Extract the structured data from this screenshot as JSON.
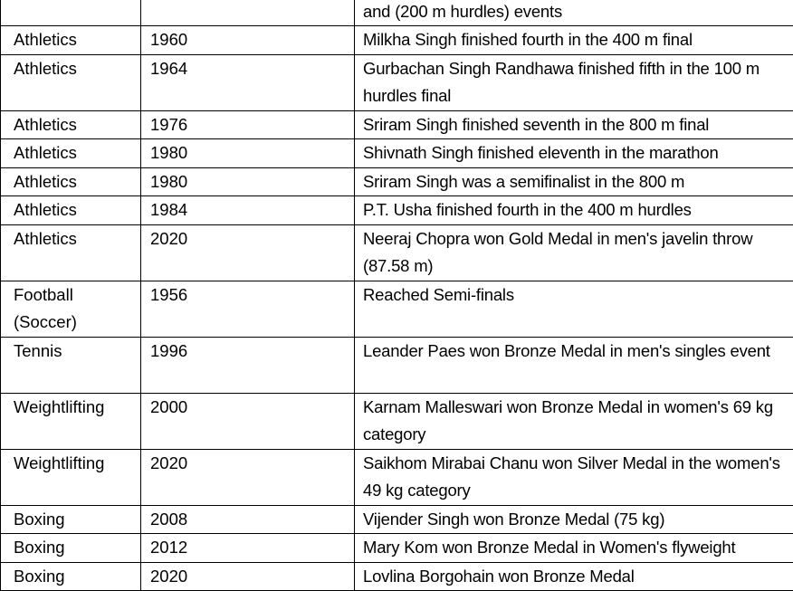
{
  "table": {
    "rows": [
      {
        "sport": "",
        "year": "",
        "desc": "and (200 m hurdles) events"
      },
      {
        "sport": "Athletics",
        "year": "1960",
        "desc": "Milkha Singh finished fourth in the 400 m final"
      },
      {
        "sport": "Athletics",
        "year": "1964",
        "desc": "Gurbachan Singh Randhawa finished fifth in the 100 m hurdles final"
      },
      {
        "sport": "Athletics",
        "year": "1976",
        "desc": "Sriram Singh finished seventh in the 800 m final"
      },
      {
        "sport": "Athletics",
        "year": "1980",
        "desc": "Shivnath Singh finished eleventh in the marathon"
      },
      {
        "sport": "Athletics",
        "year": "1980",
        "desc": "Sriram Singh was a semifinalist in the 800 m"
      },
      {
        "sport": "Athletics",
        "year": "1984",
        "desc": "P.T. Usha finished fourth in the 400 m hurdles"
      },
      {
        "sport": "Athletics",
        "year": "2020",
        "desc": "Neeraj Chopra won Gold Medal in men's javelin throw (87.58 m)"
      },
      {
        "sport": "Football (Soccer)",
        "year": "1956",
        "desc": "Reached Semi-finals"
      },
      {
        "sport": "Tennis",
        "year": "1996",
        "desc": "Leander Paes won Bronze Medal in men's singles event"
      },
      {
        "sport": "Weightlifting",
        "year": "2000",
        "desc": "Karnam Malleswari won Bronze Medal in women's 69 kg category"
      },
      {
        "sport": "Weightlifting",
        "year": "2020",
        "desc": "Saikhom Mirabai Chanu won Silver Medal in the women's 49 kg category"
      },
      {
        "sport": "Boxing",
        "year": "2008",
        "desc": "Vijender Singh won Bronze Medal (75 kg)"
      },
      {
        "sport": "Boxing",
        "year": "2012",
        "desc": "Mary Kom won Bronze Medal in Women's flyweight"
      },
      {
        "sport": "Boxing",
        "year": "2020",
        "desc": "Lovlina Borgohain won Bronze Medal"
      }
    ]
  }
}
